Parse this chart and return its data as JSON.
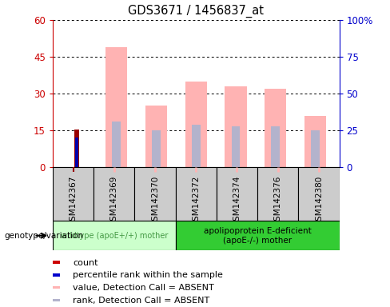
{
  "title": "GDS3671 / 1456837_at",
  "samples": [
    "GSM142367",
    "GSM142369",
    "GSM142370",
    "GSM142372",
    "GSM142374",
    "GSM142376",
    "GSM142380"
  ],
  "count_values": [
    15.5,
    0,
    0,
    0,
    0,
    0,
    0
  ],
  "percentile_rank_values": [
    20,
    0,
    0,
    0,
    0,
    0,
    0
  ],
  "value_absent": [
    0,
    49,
    25,
    35,
    33,
    32,
    21
  ],
  "rank_absent": [
    0,
    31,
    25,
    29,
    28,
    28,
    25
  ],
  "ylim_left": [
    0,
    60
  ],
  "ylim_right": [
    0,
    100
  ],
  "left_yticks": [
    0,
    15,
    30,
    45,
    60
  ],
  "right_yticks": [
    0,
    25,
    50,
    75,
    100
  ],
  "left_ytick_labels": [
    "0",
    "15",
    "30",
    "45",
    "60"
  ],
  "right_ytick_labels": [
    "0",
    "25",
    "50",
    "75",
    "100%"
  ],
  "left_axis_color": "#cc0000",
  "right_axis_color": "#0000cc",
  "bar_color_count": "#990000",
  "bar_color_percentile": "#0000aa",
  "bar_color_value_absent": "#ffb3b3",
  "bar_color_rank_absent": "#b3b3cc",
  "group1_label": "wildtype (apoE+/+) mother",
  "group2_label": "apolipoprotein E-deficient\n(apoE-/-) mother",
  "group1_color": "#ccffcc",
  "group2_color": "#33cc33",
  "group1_text_color": "#449944",
  "group2_text_color": "#000000",
  "genotype_label": "genotype/variation",
  "legend_items": [
    {
      "label": "count",
      "color": "#cc0000"
    },
    {
      "label": "percentile rank within the sample",
      "color": "#0000cc"
    },
    {
      "label": "value, Detection Call = ABSENT",
      "color": "#ffb3b3"
    },
    {
      "label": "rank, Detection Call = ABSENT",
      "color": "#b3b3cc"
    }
  ],
  "background_color": "#ffffff",
  "gray_label_bg": "#cccccc"
}
